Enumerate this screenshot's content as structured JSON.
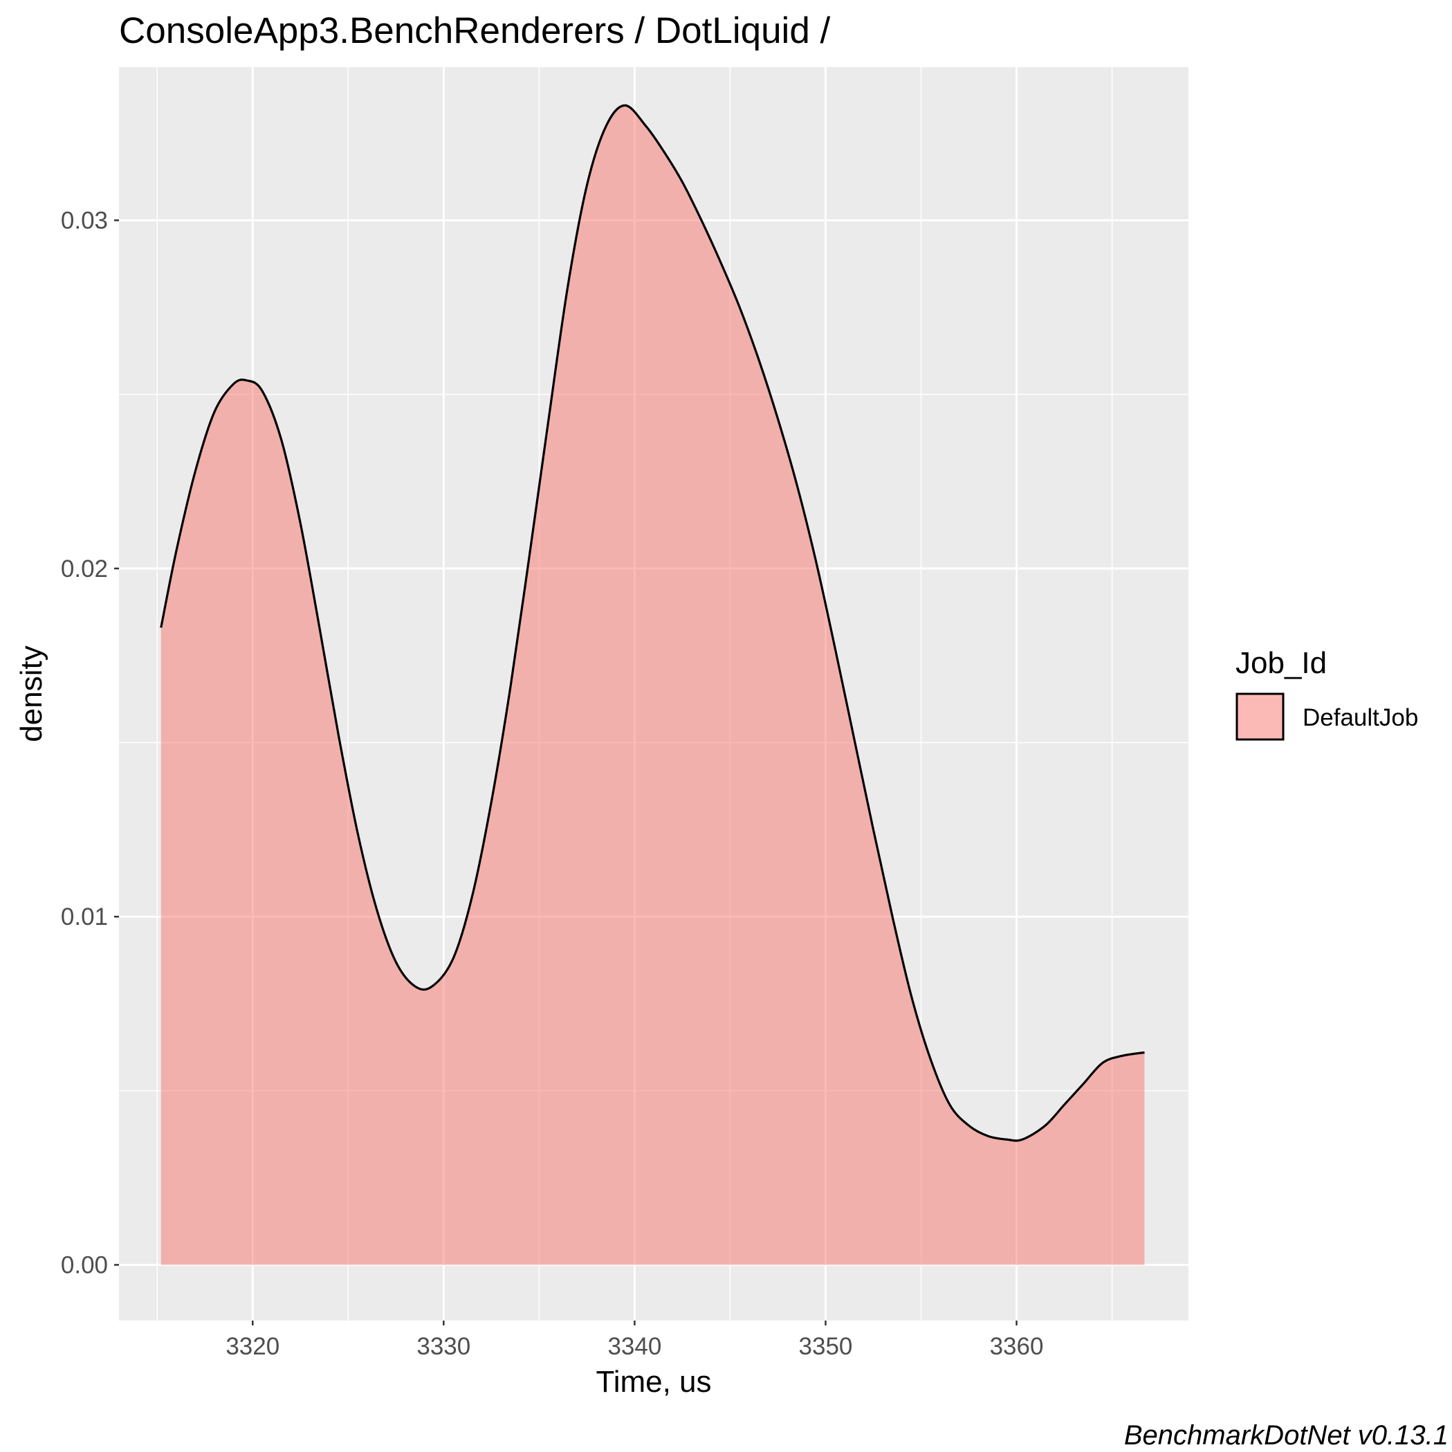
{
  "chart_data": {
    "type": "area",
    "title": "ConsoleApp3.BenchRenderers / DotLiquid /",
    "xlabel": "Time, us",
    "ylabel": "density",
    "xlim": [
      3313.0,
      3369.0
    ],
    "ylim": [
      -0.0016,
      0.0344
    ],
    "x_ticks": [
      3320,
      3330,
      3340,
      3350,
      3360
    ],
    "x_tick_labels": [
      "3320",
      "3330",
      "3340",
      "3350",
      "3360"
    ],
    "y_ticks": [
      0.0,
      0.01,
      0.02,
      0.03
    ],
    "y_tick_labels": [
      "0.00",
      "0.01",
      "0.02",
      "0.03"
    ],
    "grid": true,
    "legend": {
      "title": "Job_Id",
      "position": "right",
      "entries": [
        "DefaultJob"
      ]
    },
    "colors": {
      "fill": "#f8766d",
      "fill_opacity": 0.5,
      "outline": "#000000",
      "panel": "#ebebeb",
      "grid": "#ffffff"
    },
    "series": [
      {
        "name": "DefaultJob",
        "x": [
          3315.2,
          3316.0,
          3317.0,
          3318.0,
          3319.0,
          3319.7,
          3320.5,
          3321.5,
          3322.5,
          3323.5,
          3324.5,
          3325.5,
          3326.5,
          3327.5,
          3328.5,
          3329.4,
          3330.5,
          3331.5,
          3332.5,
          3333.5,
          3334.5,
          3335.5,
          3336.5,
          3337.5,
          3338.5,
          3339.5,
          3340.6,
          3341.5,
          3342.5,
          3343.5,
          3344.5,
          3345.5,
          3346.5,
          3347.5,
          3348.5,
          3349.5,
          3350.5,
          3351.5,
          3352.5,
          3353.5,
          3354.5,
          3355.5,
          3356.5,
          3357.5,
          3358.5,
          3359.5,
          3360.3,
          3361.5,
          3362.5,
          3363.5,
          3364.5,
          3365.5,
          3366.7
        ],
        "y": [
          0.0183,
          0.0205,
          0.0228,
          0.0245,
          0.0253,
          0.0254,
          0.0251,
          0.0237,
          0.0213,
          0.0183,
          0.0152,
          0.0124,
          0.0102,
          0.0087,
          0.008,
          0.008,
          0.0088,
          0.0106,
          0.0133,
          0.0166,
          0.0204,
          0.0243,
          0.0281,
          0.031,
          0.0327,
          0.0333,
          0.0327,
          0.032,
          0.0311,
          0.03,
          0.0288,
          0.0275,
          0.026,
          0.0243,
          0.0224,
          0.0202,
          0.0177,
          0.0151,
          0.0125,
          0.01,
          0.0077,
          0.0059,
          0.0046,
          0.004,
          0.0037,
          0.0036,
          0.0036,
          0.004,
          0.0046,
          0.0052,
          0.0058,
          0.006,
          0.0061
        ]
      }
    ]
  },
  "caption": "BenchmarkDotNet v0.13.1"
}
